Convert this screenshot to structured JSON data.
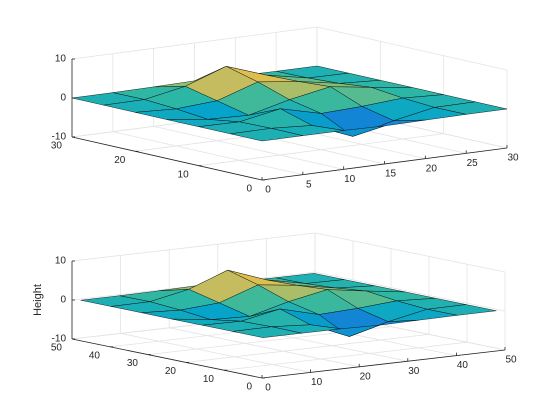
{
  "chart_data": [
    {
      "type": "surface",
      "x": [
        0,
        5,
        10,
        15,
        20,
        25,
        30
      ],
      "y": [
        0,
        5,
        10,
        15,
        20,
        25,
        30
      ],
      "z": [
        [
          0,
          0,
          -0.03,
          -0.24,
          -0.11,
          -0.01,
          0
        ],
        [
          0,
          0.05,
          -0.59,
          -4.76,
          -2.1,
          -0.06,
          0
        ],
        [
          -0.01,
          -0.13,
          1.86,
          -0.72,
          -0.27,
          0.5,
          0.01
        ],
        [
          -0.04,
          -1.33,
          -1.65,
          0.98,
          2.94,
          1.41,
          0.03
        ],
        [
          -0.01,
          -0.48,
          0.23,
          3.69,
          2.43,
          0.58,
          0.01
        ],
        [
          0,
          0.08,
          2.1,
          5.86,
          2.21,
          0.13,
          0
        ],
        [
          0,
          0.01,
          0.11,
          0.3,
          0.11,
          0.01,
          0
        ]
      ],
      "xlim": [
        0,
        30
      ],
      "ylim": [
        0,
        30
      ],
      "zlim": [
        -10,
        10
      ],
      "xticks": [
        0,
        5,
        10,
        15,
        20,
        25,
        30
      ],
      "yticks": [
        0,
        10,
        20,
        30
      ],
      "zticks": [
        -10,
        0,
        10
      ],
      "grid": true
    },
    {
      "type": "surface",
      "x": [
        1,
        9,
        17,
        25,
        33,
        41,
        49
      ],
      "y": [
        1,
        9,
        17,
        25,
        33,
        41,
        49
      ],
      "z": [
        [
          0,
          0,
          -0.03,
          -0.24,
          -0.11,
          -0.01,
          0
        ],
        [
          0,
          0.05,
          -0.59,
          -4.76,
          -2.1,
          -0.06,
          0
        ],
        [
          -0.01,
          -0.13,
          1.86,
          -0.72,
          -0.27,
          0.5,
          0.01
        ],
        [
          -0.04,
          -1.33,
          -1.65,
          0.98,
          2.94,
          1.41,
          0.03
        ],
        [
          -0.01,
          -0.48,
          0.23,
          3.69,
          2.43,
          0.58,
          0.01
        ],
        [
          0,
          0.08,
          2.1,
          5.86,
          2.21,
          0.13,
          0
        ],
        [
          0,
          0.01,
          0.11,
          0.3,
          0.11,
          0.01,
          0
        ]
      ],
      "xlim": [
        0,
        50
      ],
      "ylim": [
        0,
        50
      ],
      "zlim": [
        -10,
        10
      ],
      "xticks": [
        0,
        10,
        20,
        30,
        40,
        50
      ],
      "yticks": [
        0,
        10,
        20,
        30,
        40,
        50
      ],
      "zticks": [
        -10,
        0,
        10
      ],
      "zlabel": "Height",
      "grid": true
    }
  ]
}
